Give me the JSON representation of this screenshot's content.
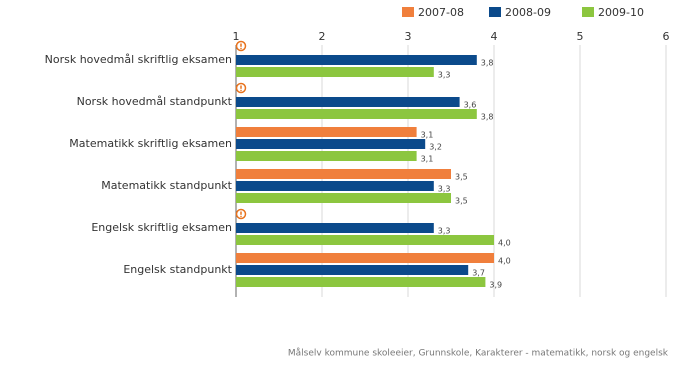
{
  "chart_data": {
    "type": "bar",
    "categories": [
      "Norsk hovedmål skriftlig eksamen",
      "Norsk hovedmål standpunkt",
      "Matematikk skriftlig eksamen",
      "Matematikk standpunkt",
      "Engelsk skriftlig eksamen",
      "Engelsk standpunkt"
    ],
    "series": [
      {
        "name": "2007-08",
        "color": "#f07f3c",
        "values": [
          null,
          null,
          3.1,
          3.5,
          null,
          4.0
        ],
        "value_labels": [
          null,
          null,
          "3,1",
          "3,5",
          null,
          "4,0"
        ]
      },
      {
        "name": "2008-09",
        "color": "#0b4a8b",
        "values": [
          3.8,
          3.6,
          3.2,
          3.3,
          3.3,
          3.7
        ],
        "value_labels": [
          "3,8",
          "3,6",
          "3,2",
          "3,3",
          "3,3",
          "3,7"
        ]
      },
      {
        "name": "2009-10",
        "color": "#8cc63f",
        "values": [
          3.3,
          3.8,
          3.1,
          3.5,
          4.0,
          3.9
        ],
        "value_labels": [
          "3,3",
          "3,8",
          "3,1",
          "3,5",
          "4,0",
          "3,9"
        ]
      }
    ],
    "xlim": [
      1,
      6
    ],
    "xticks": [
      1,
      2,
      3,
      4,
      5,
      6
    ],
    "grid": true,
    "legend": "top-right",
    "footer": "Målselv kommune skoleeier, Grunnskole, Karakterer - matematikk, norsk og engelsk"
  }
}
